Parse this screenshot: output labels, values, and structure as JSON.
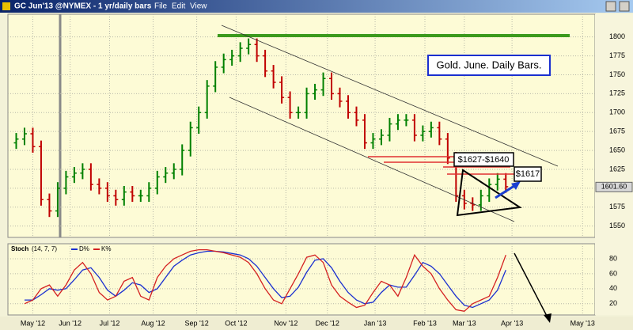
{
  "window": {
    "title": "GC Jun'13 @NYMEX - 1 yr/daily bars",
    "menu": [
      "File",
      "Edit",
      "View"
    ]
  },
  "chart_data": [
    {
      "type": "ohlc",
      "title": "Gold. June. Daily Bars.",
      "annotations": [
        "$1627-$1640",
        "$1617"
      ],
      "last_price": {
        "value": 1601.6,
        "label": "1601.60"
      },
      "x": [
        -8,
        -4,
        0,
        4,
        8,
        12,
        16,
        20,
        24,
        28,
        32,
        36,
        40,
        44,
        48,
        52,
        56,
        60,
        64,
        68,
        72,
        76,
        80,
        84,
        88,
        92,
        96,
        100,
        104,
        108,
        112,
        116,
        120,
        124,
        128,
        132,
        136,
        140,
        144,
        148,
        152,
        156,
        160,
        164,
        168,
        172,
        176,
        180,
        184,
        188,
        192,
        196,
        200,
        204,
        208,
        212,
        216,
        220,
        224,
        228
      ],
      "series": [
        {
          "up_color": "#008000",
          "down_color": "#c00000",
          "open": [
            1660,
            1665,
            1672,
            1655,
            1585,
            1570,
            1600,
            1615,
            1620,
            1625,
            1605,
            1600,
            1590,
            1585,
            1595,
            1590,
            1590,
            1600,
            1615,
            1620,
            1625,
            1650,
            1680,
            1700,
            1735,
            1760,
            1770,
            1775,
            1785,
            1790,
            1775,
            1755,
            1740,
            1720,
            1700,
            1700,
            1725,
            1730,
            1745,
            1725,
            1715,
            1700,
            1690,
            1660,
            1665,
            1670,
            1685,
            1690,
            1690,
            1670,
            1675,
            1680,
            1665,
            1640,
            1590,
            1580,
            1578,
            1590,
            1605,
            1612
          ],
          "high": [
            1673,
            1680,
            1680,
            1663,
            1593,
            1608,
            1623,
            1628,
            1633,
            1633,
            1613,
            1608,
            1598,
            1603,
            1603,
            1598,
            1608,
            1623,
            1628,
            1633,
            1658,
            1688,
            1708,
            1743,
            1768,
            1778,
            1783,
            1793,
            1798,
            1798,
            1783,
            1763,
            1748,
            1728,
            1708,
            1733,
            1738,
            1753,
            1753,
            1733,
            1723,
            1708,
            1698,
            1673,
            1678,
            1693,
            1698,
            1698,
            1698,
            1683,
            1688,
            1688,
            1673,
            1648,
            1598,
            1588,
            1598,
            1613,
            1620,
            1620
          ],
          "low": [
            1652,
            1657,
            1647,
            1577,
            1562,
            1562,
            1592,
            1607,
            1612,
            1597,
            1592,
            1582,
            1577,
            1577,
            1582,
            1582,
            1582,
            1592,
            1607,
            1612,
            1617,
            1642,
            1672,
            1692,
            1727,
            1752,
            1762,
            1767,
            1777,
            1767,
            1747,
            1732,
            1712,
            1692,
            1692,
            1692,
            1717,
            1722,
            1717,
            1707,
            1692,
            1682,
            1652,
            1652,
            1657,
            1662,
            1677,
            1682,
            1662,
            1662,
            1667,
            1657,
            1632,
            1582,
            1572,
            1570,
            1570,
            1582,
            1597,
            1594
          ],
          "close": [
            1665,
            1672,
            1655,
            1585,
            1570,
            1600,
            1615,
            1620,
            1625,
            1605,
            1600,
            1590,
            1585,
            1595,
            1590,
            1590,
            1600,
            1615,
            1620,
            1625,
            1650,
            1680,
            1700,
            1735,
            1760,
            1770,
            1775,
            1785,
            1790,
            1775,
            1755,
            1740,
            1720,
            1700,
            1700,
            1725,
            1730,
            1745,
            1725,
            1715,
            1700,
            1690,
            1660,
            1665,
            1670,
            1685,
            1690,
            1690,
            1670,
            1675,
            1680,
            1665,
            1640,
            1590,
            1580,
            1578,
            1590,
            1605,
            1612,
            1602
          ]
        }
      ],
      "xlim": [
        -12,
        271
      ],
      "ylim": [
        1535,
        1830
      ],
      "yticks": [
        1550,
        1575,
        1600,
        1625,
        1650,
        1675,
        1700,
        1725,
        1750,
        1775,
        1800
      ],
      "xticks": [
        {
          "value": 0,
          "label": "May '12"
        },
        {
          "value": 18,
          "label": "Jun '12"
        },
        {
          "value": 37,
          "label": "Jul '12"
        },
        {
          "value": 58,
          "label": "Aug '12"
        },
        {
          "value": 79,
          "label": "Sep '12"
        },
        {
          "value": 98,
          "label": "Oct '12"
        },
        {
          "value": 122,
          "label": "Nov '12"
        },
        {
          "value": 142,
          "label": "Dec '12"
        },
        {
          "value": 165,
          "label": "Jan '13"
        },
        {
          "value": 189,
          "label": "Feb '13"
        },
        {
          "value": 208,
          "label": "Mar '13"
        },
        {
          "value": 231,
          "label": "Apr '13"
        },
        {
          "value": 265,
          "label": "May '13"
        }
      ],
      "grid": true
    },
    {
      "type": "line",
      "title": "Stoch",
      "subtitle": "(14, 7, 7)",
      "x": [
        -8,
        -4,
        0,
        4,
        8,
        12,
        16,
        20,
        24,
        28,
        32,
        36,
        40,
        44,
        48,
        52,
        56,
        60,
        64,
        68,
        72,
        76,
        80,
        84,
        88,
        92,
        96,
        100,
        104,
        108,
        112,
        116,
        120,
        124,
        128,
        132,
        136,
        140,
        144,
        148,
        152,
        156,
        160,
        164,
        168,
        172,
        176,
        180,
        184,
        188,
        192,
        196,
        200,
        204,
        208,
        212,
        216,
        220,
        224,
        228
      ],
      "series": [
        {
          "name": "D%",
          "color": "#1a2fd0",
          "values": [
            null,
            25,
            25,
            32,
            40,
            38,
            40,
            52,
            65,
            68,
            55,
            38,
            30,
            38,
            48,
            45,
            35,
            40,
            55,
            70,
            78,
            85,
            88,
            90,
            90,
            89,
            87,
            85,
            80,
            70,
            55,
            40,
            28,
            30,
            42,
            62,
            78,
            80,
            68,
            50,
            35,
            25,
            20,
            22,
            35,
            45,
            42,
            42,
            58,
            75,
            70,
            60,
            45,
            30,
            18,
            15,
            20,
            25,
            38,
            65
          ]
        },
        {
          "name": "K%",
          "color": "#d42020",
          "values": [
            null,
            20,
            25,
            40,
            45,
            30,
            45,
            65,
            75,
            60,
            35,
            25,
            30,
            50,
            55,
            30,
            25,
            55,
            70,
            80,
            85,
            90,
            92,
            92,
            90,
            88,
            85,
            82,
            75,
            60,
            40,
            25,
            20,
            40,
            60,
            82,
            85,
            75,
            45,
            30,
            22,
            15,
            18,
            35,
            50,
            45,
            30,
            55,
            85,
            70,
            60,
            40,
            25,
            12,
            10,
            20,
            25,
            30,
            55,
            85
          ]
        }
      ],
      "xlim": [
        -12,
        271
      ],
      "ylim": [
        5,
        100
      ],
      "yticks": [
        20,
        40,
        60,
        80
      ],
      "grid": true
    }
  ]
}
